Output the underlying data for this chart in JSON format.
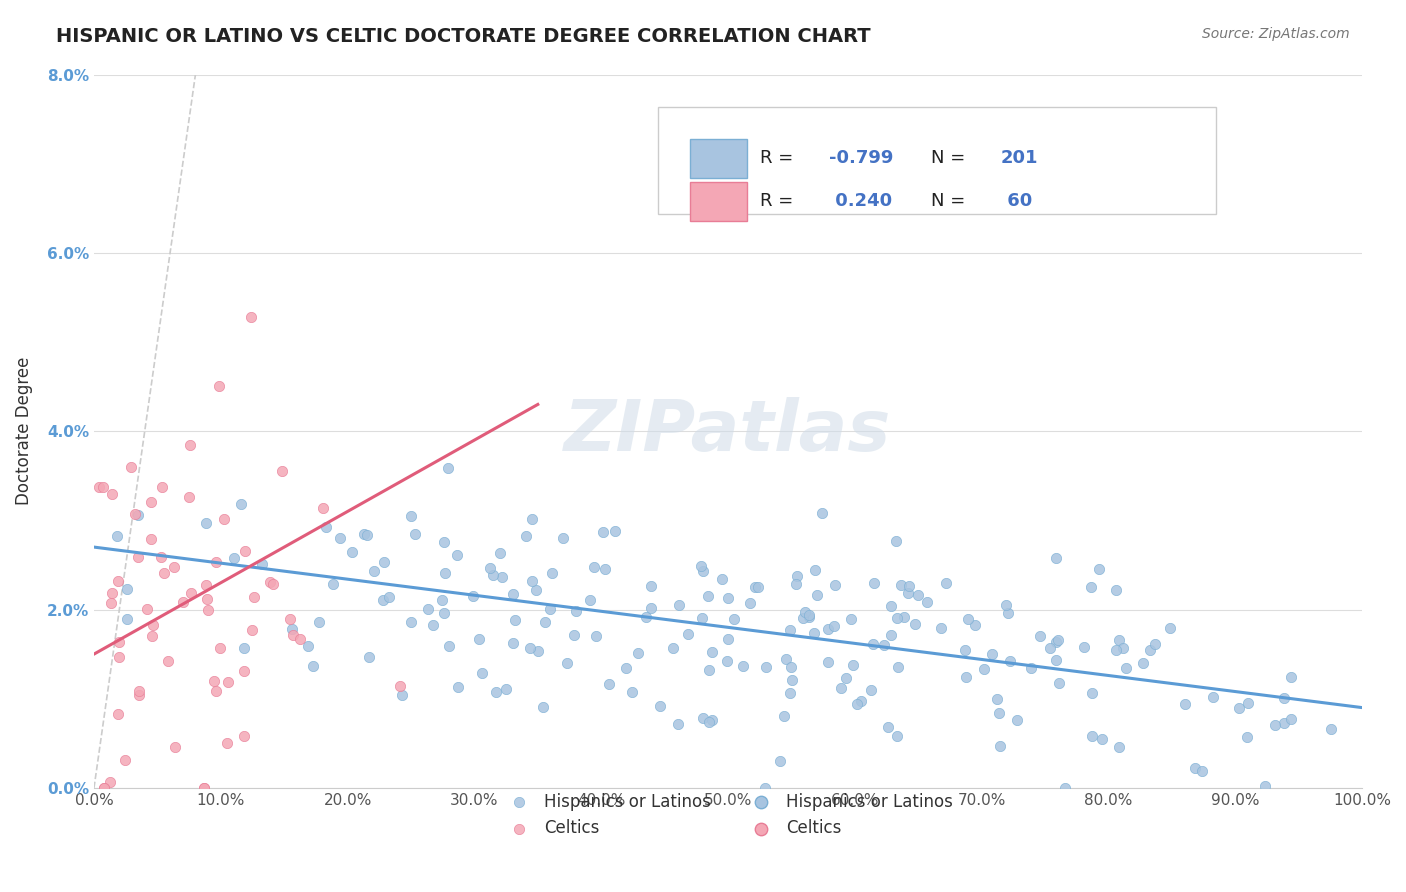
{
  "title": "HISPANIC OR LATINO VS CELTIC DOCTORATE DEGREE CORRELATION CHART",
  "source": "Source: ZipAtlas.com",
  "xlabel_bottom": "",
  "ylabel": "Doctorate Degree",
  "xlim": [
    0,
    1.0
  ],
  "ylim": [
    0,
    0.08
  ],
  "xticks": [
    0.0,
    0.1,
    0.2,
    0.3,
    0.4,
    0.5,
    0.6,
    0.7,
    0.8,
    0.9,
    1.0
  ],
  "xtick_labels": [
    "0.0%",
    "10.0%",
    "20.0%",
    "30.0%",
    "40.0%",
    "50.0%",
    "60.0%",
    "70.0%",
    "80.0%",
    "90.0%",
    "100.0%"
  ],
  "yticks": [
    0.0,
    0.02,
    0.04,
    0.06,
    0.08
  ],
  "ytick_labels": [
    "0.0%",
    "2.0%",
    "4.0%",
    "6.0%",
    "8.0%"
  ],
  "blue_color": "#a8c4e0",
  "blue_edge": "#7bafd4",
  "pink_color": "#f4a7b5",
  "pink_edge": "#e87d96",
  "blue_line_color": "#5b9bd5",
  "pink_line_color": "#e05c7a",
  "diag_color": "#cccccc",
  "R_blue": -0.799,
  "N_blue": 201,
  "R_pink": 0.24,
  "N_pink": 60,
  "legend_label_blue": "Hispanics or Latinos",
  "legend_label_pink": "Celtics",
  "watermark": "ZIPatlas",
  "background_color": "#ffffff",
  "grid_color": "#dddddd"
}
